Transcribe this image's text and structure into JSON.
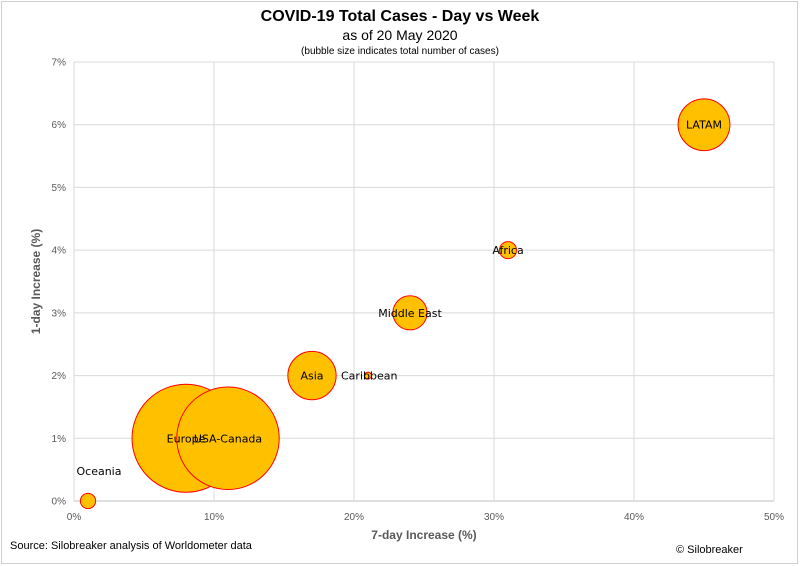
{
  "title": "COVID-19 Total Cases - Day vs Week",
  "subtitle": "as of 20 May 2020",
  "note": "(bubble size indicates total number of cases)",
  "source": "Source: Silobreaker analysis of Worldometer data",
  "credit": "© Silobreaker",
  "chart_data": {
    "type": "bubble",
    "title": "COVID-19 Total Cases - Day vs Week",
    "subtitle": "as of 20 May 2020",
    "xlabel": "7-day Increase (%)",
    "ylabel": "1-day Increase (%)",
    "xlim": [
      0,
      50
    ],
    "ylim": [
      0,
      7
    ],
    "x_ticks": [
      "0%",
      "10%",
      "20%",
      "30%",
      "40%",
      "50%"
    ],
    "y_ticks": [
      "0%",
      "1%",
      "2%",
      "3%",
      "4%",
      "5%",
      "6%",
      "7%"
    ],
    "grid": true,
    "bubble_fill": "#FFC000",
    "bubble_stroke": "#FF0000",
    "points": [
      {
        "label": "Oceania",
        "x": 1,
        "y": 0,
        "size": 0.02
      },
      {
        "label": "Europe",
        "x": 8,
        "y": 1,
        "size": 1.0
      },
      {
        "label": "USA-Canada",
        "x": 11,
        "y": 1,
        "size": 0.9
      },
      {
        "label": "Asia",
        "x": 17,
        "y": 2,
        "size": 0.2
      },
      {
        "label": "Caribbean",
        "x": 21,
        "y": 2,
        "size": 0.004
      },
      {
        "label": "Middle East",
        "x": 24,
        "y": 3,
        "size": 0.1
      },
      {
        "label": "Africa",
        "x": 31,
        "y": 4,
        "size": 0.025
      },
      {
        "label": "LATAM",
        "x": 45,
        "y": 6,
        "size": 0.23
      }
    ]
  }
}
